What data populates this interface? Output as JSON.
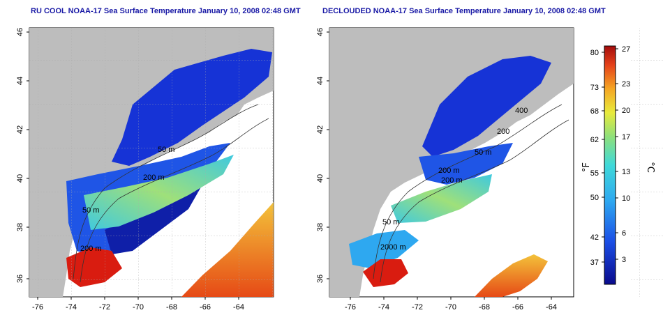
{
  "left_map": {
    "title": "RU COOL NOAA-17 Sea Surface Temperature January 10, 2008 02:48 GMT",
    "contour_labels": [
      "50 m",
      "200 m",
      "50 m",
      "200 m"
    ]
  },
  "right_map": {
    "title": "DECLOUDED NOAA-17 Sea Surface Temperature January 10, 2008 02:48 GMT",
    "contour_labels": [
      "50 m",
      "200 m",
      "400",
      "200",
      "200 m",
      "50 m",
      "2000 m"
    ]
  },
  "axes": {
    "longitude_ticks": [
      "-76",
      "-74",
      "-72",
      "-70",
      "-68",
      "-66",
      "-64"
    ],
    "latitude_ticks": [
      "36",
      "38",
      "40",
      "42",
      "44",
      "46"
    ]
  },
  "colorbar": {
    "fahrenheit_label": "°F",
    "celsius_label": "°C",
    "fahrenheit_ticks": [
      "80",
      "73",
      "68",
      "62",
      "55",
      "50",
      "42",
      "37"
    ],
    "celsius_ticks": [
      "27",
      "23",
      "20",
      "17",
      "13",
      "10",
      "6",
      "3"
    ]
  },
  "colors": {
    "land": "#bdbdbd",
    "cold": "#1633d6",
    "mid": "#3fc9e6",
    "warm": "#f0e34a",
    "hot": "#d91c10"
  }
}
